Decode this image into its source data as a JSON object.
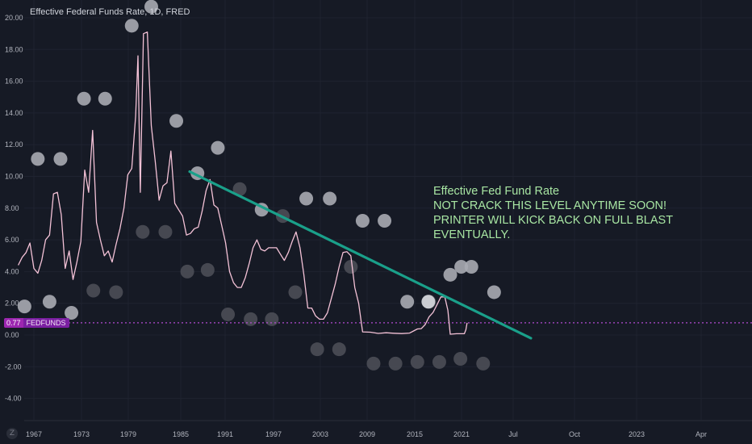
{
  "header": {
    "title": "Effective Federal Funds Rate, 1D, FRED"
  },
  "annotation": {
    "line1": "Effective Fed Fund Rate",
    "line2": "NOT CRACK THIS LEVEL ANYTIME SOON!",
    "line3": "PRINTER WILL KICK BACK ON FULL BLAST",
    "line4": "EVENTUALLY."
  },
  "price_label": {
    "value": "0.77",
    "symbol": "FEDFUNDS"
  },
  "logo": {
    "text": "Z"
  },
  "colors": {
    "background": "#161a25",
    "series_line": "#f4c2d7",
    "trendline": "#1aa08a",
    "price_line": "#b04ad0",
    "bubble_light": "#a9abb3",
    "bubble_dark": "#4b4e57",
    "annotation_text": "#a8e6a3"
  },
  "chart_data": {
    "type": "line",
    "ylim": [
      -5,
      21
    ],
    "y_ticks": [
      "20.00",
      "18.00",
      "16.00",
      "14.00",
      "12.00",
      "10.00",
      "8.00",
      "6.00",
      "4.00",
      "2.00",
      "0.00",
      "-2.00",
      "-4.00"
    ],
    "x_ticks": [
      "1967",
      "1973",
      "1979",
      "1985",
      "1991",
      "1997",
      "2003",
      "2009",
      "2015",
      "2021",
      "Jul",
      "Oct",
      "2023",
      "Apr"
    ],
    "current_value": 0.77,
    "series": [
      {
        "name": "FEDFUNDS",
        "points": [
          [
            1965.0,
            4.4
          ],
          [
            1965.5,
            4.9
          ],
          [
            1966.0,
            5.2
          ],
          [
            1966.5,
            5.8
          ],
          [
            1967.0,
            4.2
          ],
          [
            1967.5,
            3.9
          ],
          [
            1968.0,
            4.7
          ],
          [
            1968.5,
            6.0
          ],
          [
            1969.0,
            6.3
          ],
          [
            1969.5,
            8.9
          ],
          [
            1970.0,
            9.0
          ],
          [
            1970.5,
            7.6
          ],
          [
            1971.0,
            4.2
          ],
          [
            1971.5,
            5.3
          ],
          [
            1972.0,
            3.5
          ],
          [
            1972.5,
            4.6
          ],
          [
            1973.0,
            5.9
          ],
          [
            1973.5,
            10.4
          ],
          [
            1974.0,
            9.0
          ],
          [
            1974.5,
            12.9
          ],
          [
            1975.0,
            7.1
          ],
          [
            1975.5,
            6.0
          ],
          [
            1976.0,
            5.0
          ],
          [
            1976.5,
            5.3
          ],
          [
            1977.0,
            4.6
          ],
          [
            1977.5,
            5.7
          ],
          [
            1978.0,
            6.7
          ],
          [
            1978.5,
            8.0
          ],
          [
            1979.0,
            10.1
          ],
          [
            1979.5,
            10.5
          ],
          [
            1980.0,
            13.8
          ],
          [
            1980.3,
            17.6
          ],
          [
            1980.6,
            9.0
          ],
          [
            1981.0,
            19.0
          ],
          [
            1981.5,
            19.1
          ],
          [
            1982.0,
            13.2
          ],
          [
            1982.5,
            11.0
          ],
          [
            1983.0,
            8.5
          ],
          [
            1983.5,
            9.4
          ],
          [
            1984.0,
            9.6
          ],
          [
            1984.5,
            11.6
          ],
          [
            1985.0,
            8.3
          ],
          [
            1985.5,
            7.9
          ],
          [
            1986.0,
            7.5
          ],
          [
            1986.5,
            6.3
          ],
          [
            1987.0,
            6.4
          ],
          [
            1987.5,
            6.7
          ],
          [
            1988.0,
            6.8
          ],
          [
            1988.5,
            7.8
          ],
          [
            1989.0,
            9.1
          ],
          [
            1989.5,
            9.8
          ],
          [
            1990.0,
            8.2
          ],
          [
            1990.5,
            8.0
          ],
          [
            1991.0,
            6.9
          ],
          [
            1991.5,
            5.8
          ],
          [
            1992.0,
            4.0
          ],
          [
            1992.5,
            3.3
          ],
          [
            1993.0,
            3.0
          ],
          [
            1993.5,
            3.0
          ],
          [
            1994.0,
            3.6
          ],
          [
            1994.5,
            4.5
          ],
          [
            1995.0,
            5.5
          ],
          [
            1995.5,
            6.0
          ],
          [
            1996.0,
            5.4
          ],
          [
            1996.5,
            5.3
          ],
          [
            1997.0,
            5.5
          ],
          [
            1997.5,
            5.5
          ],
          [
            1998.0,
            5.5
          ],
          [
            1998.5,
            5.1
          ],
          [
            1999.0,
            4.7
          ],
          [
            1999.5,
            5.2
          ],
          [
            2000.0,
            5.9
          ],
          [
            2000.5,
            6.5
          ],
          [
            2001.0,
            5.5
          ],
          [
            2001.5,
            3.8
          ],
          [
            2002.0,
            1.7
          ],
          [
            2002.5,
            1.7
          ],
          [
            2003.0,
            1.2
          ],
          [
            2003.5,
            1.0
          ],
          [
            2004.0,
            1.0
          ],
          [
            2004.5,
            1.4
          ],
          [
            2005.0,
            2.3
          ],
          [
            2005.5,
            3.2
          ],
          [
            2006.0,
            4.3
          ],
          [
            2006.5,
            5.2
          ],
          [
            2007.0,
            5.25
          ],
          [
            2007.5,
            5.0
          ],
          [
            2008.0,
            3.0
          ],
          [
            2008.5,
            2.0
          ],
          [
            2009.0,
            0.2
          ],
          [
            2010.0,
            0.18
          ],
          [
            2011.0,
            0.1
          ],
          [
            2012.0,
            0.14
          ],
          [
            2013.0,
            0.11
          ],
          [
            2014.0,
            0.09
          ],
          [
            2015.0,
            0.12
          ],
          [
            2016.0,
            0.38
          ],
          [
            2016.5,
            0.4
          ],
          [
            2017.0,
            0.66
          ],
          [
            2017.5,
            1.15
          ],
          [
            2018.0,
            1.42
          ],
          [
            2018.5,
            1.9
          ],
          [
            2019.0,
            2.4
          ],
          [
            2019.5,
            2.4
          ],
          [
            2019.9,
            1.55
          ],
          [
            2020.2,
            0.05
          ],
          [
            2021.0,
            0.08
          ],
          [
            2021.5,
            0.08
          ],
          [
            2022.0,
            0.08
          ],
          [
            2022.2,
            0.33
          ],
          [
            2022.35,
            0.77
          ]
        ]
      }
    ],
    "trendline": {
      "start": [
        1986.9,
        10.3
      ],
      "end": [
        2030.5,
        -0.2
      ]
    },
    "bubbles": [
      {
        "x": 1965.8,
        "y": 1.8,
        "tone": "light"
      },
      {
        "x": 1967.5,
        "y": 11.1,
        "tone": "light"
      },
      {
        "x": 1969.0,
        "y": 2.1,
        "tone": "light"
      },
      {
        "x": 1970.4,
        "y": 11.1,
        "tone": "light"
      },
      {
        "x": 1971.8,
        "y": 1.4,
        "tone": "light"
      },
      {
        "x": 1973.4,
        "y": 14.9,
        "tone": "light"
      },
      {
        "x": 1974.6,
        "y": 2.8,
        "tone": "dark"
      },
      {
        "x": 1976.1,
        "y": 14.9,
        "tone": "light"
      },
      {
        "x": 1977.5,
        "y": 2.7,
        "tone": "dark"
      },
      {
        "x": 1979.5,
        "y": 19.5,
        "tone": "light"
      },
      {
        "x": 1980.9,
        "y": 6.5,
        "tone": "dark"
      },
      {
        "x": 1982.0,
        "y": 20.7,
        "tone": "light"
      },
      {
        "x": 1983.8,
        "y": 6.5,
        "tone": "dark"
      },
      {
        "x": 1985.2,
        "y": 13.5,
        "tone": "light"
      },
      {
        "x": 1986.6,
        "y": 4.0,
        "tone": "dark"
      },
      {
        "x": 1987.9,
        "y": 10.2,
        "tone": "light"
      },
      {
        "x": 1989.2,
        "y": 4.1,
        "tone": "dark"
      },
      {
        "x": 1990.5,
        "y": 11.8,
        "tone": "light"
      },
      {
        "x": 1991.8,
        "y": 1.3,
        "tone": "dark"
      },
      {
        "x": 1993.3,
        "y": 9.2,
        "tone": "dark"
      },
      {
        "x": 1994.7,
        "y": 1.0,
        "tone": "dark"
      },
      {
        "x": 1996.1,
        "y": 7.9,
        "tone": "light"
      },
      {
        "x": 1997.4,
        "y": 1.0,
        "tone": "dark"
      },
      {
        "x": 1998.8,
        "y": 7.5,
        "tone": "dark"
      },
      {
        "x": 2000.4,
        "y": 2.7,
        "tone": "dark"
      },
      {
        "x": 2001.8,
        "y": 8.6,
        "tone": "light"
      },
      {
        "x": 2003.2,
        "y": -0.9,
        "tone": "dark"
      },
      {
        "x": 2004.8,
        "y": 8.6,
        "tone": "light"
      },
      {
        "x": 2006.0,
        "y": -0.9,
        "tone": "dark"
      },
      {
        "x": 2007.5,
        "y": 4.3,
        "tone": "dark"
      },
      {
        "x": 2009.0,
        "y": 7.2,
        "tone": "light"
      },
      {
        "x": 2010.4,
        "y": -1.8,
        "tone": "dark"
      },
      {
        "x": 2011.8,
        "y": 7.2,
        "tone": "light"
      },
      {
        "x": 2013.2,
        "y": -1.8,
        "tone": "dark"
      },
      {
        "x": 2014.7,
        "y": 2.1,
        "tone": "light"
      },
      {
        "x": 2016.0,
        "y": -1.7,
        "tone": "dark"
      },
      {
        "x": 2017.5,
        "y": 2.1,
        "tone": "dark"
      },
      {
        "x": 2017.4,
        "y": 2.1,
        "tone": "white"
      },
      {
        "x": 2018.8,
        "y": -1.7,
        "tone": "dark"
      },
      {
        "x": 2020.2,
        "y": 3.8,
        "tone": "light"
      },
      {
        "x": 2021.6,
        "y": 4.3,
        "tone": "light"
      },
      {
        "x": 2021.5,
        "y": -1.5,
        "tone": "dark"
      },
      {
        "x": 2022.9,
        "y": 4.3,
        "tone": "light"
      },
      {
        "x": 2024.4,
        "y": -1.8,
        "tone": "dark"
      },
      {
        "x": 2025.8,
        "y": 2.7,
        "tone": "light"
      }
    ]
  }
}
